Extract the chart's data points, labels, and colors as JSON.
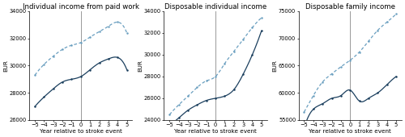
{
  "titles": [
    "Individual income from paid work",
    "Disposable individual income",
    "Disposable family income"
  ],
  "xlabel": "Year relative to stroke event",
  "ylabel": "EUR",
  "x": [
    -5,
    -4,
    -3,
    -2,
    -1,
    0,
    1,
    2,
    3,
    4,
    5
  ],
  "panel1": {
    "stroke_line": [
      27000,
      27700,
      28300,
      28800,
      29000,
      29200,
      29700,
      30200,
      30500,
      30600,
      29700
    ],
    "ref_line": [
      29300,
      30100,
      30700,
      31200,
      31500,
      31700,
      32100,
      32500,
      32900,
      33200,
      32400
    ],
    "ylim": [
      26000,
      34000
    ],
    "yticks": [
      26000,
      28000,
      30000,
      32000,
      34000
    ]
  },
  "panel2": {
    "stroke_line": [
      23500,
      24200,
      24900,
      25400,
      25800,
      26000,
      26200,
      26800,
      28200,
      30000,
      32200
    ],
    "ref_line": [
      24500,
      25400,
      26200,
      27000,
      27600,
      28000,
      29200,
      30300,
      31400,
      32500,
      33400
    ],
    "ylim": [
      24000,
      34000
    ],
    "yticks": [
      24000,
      26000,
      28000,
      30000,
      32000,
      34000
    ]
  },
  "panel3": {
    "stroke_line": [
      53500,
      57000,
      58000,
      59000,
      59500,
      60500,
      58500,
      59000,
      60000,
      61500,
      63000
    ],
    "ref_line": [
      56500,
      59500,
      62000,
      63500,
      64800,
      66000,
      67500,
      69500,
      71500,
      73000,
      74500
    ],
    "ylim": [
      55000,
      75000
    ],
    "yticks": [
      55000,
      60000,
      65000,
      70000,
      75000
    ]
  },
  "stroke_color": "#1b3f5e",
  "ref_color": "#6a9fc0",
  "vline_color": "#999999",
  "line_width": 0.9,
  "marker_size": 1.8,
  "title_fontsize": 6.2,
  "tick_fontsize": 4.8,
  "label_fontsize": 5.2,
  "figsize": [
    5.0,
    1.7
  ],
  "dpi": 100
}
